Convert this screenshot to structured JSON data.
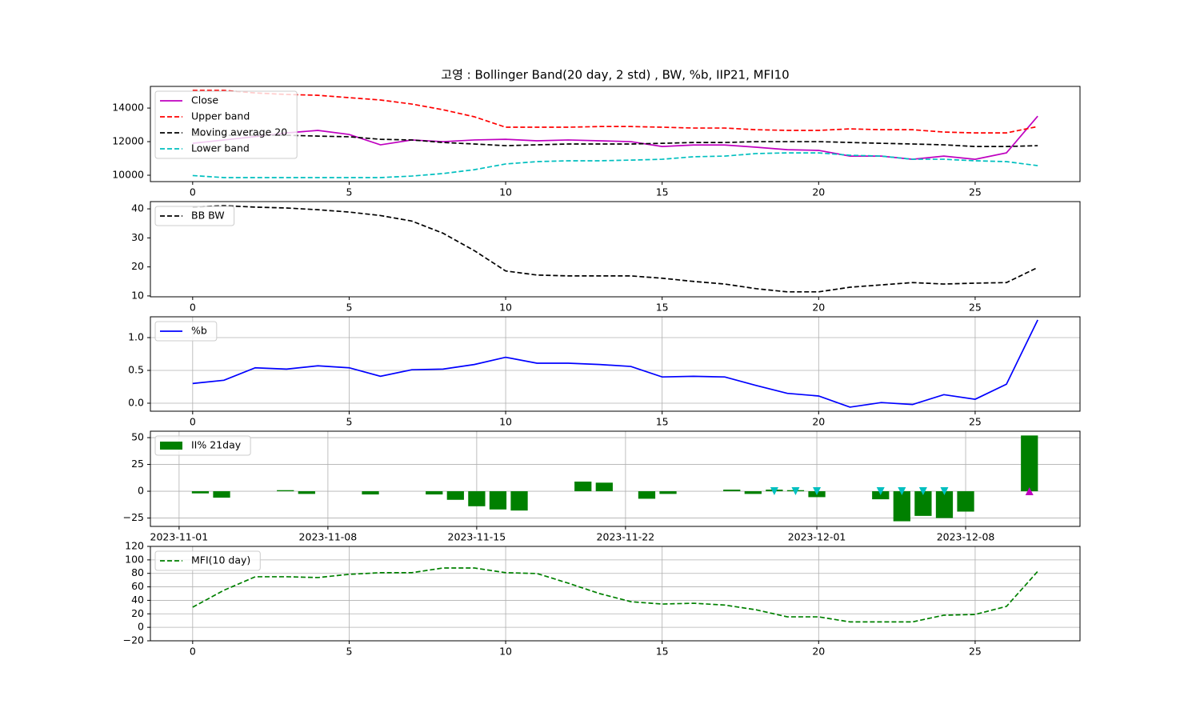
{
  "chart_data": [
    {
      "type": "line",
      "title": "고영 : Bollinger Band(20 day, 2 std) , BW, %b, IIP21, MFI10",
      "x": [
        0,
        1,
        2,
        3,
        4,
        5,
        6,
        7,
        8,
        9,
        10,
        11,
        12,
        13,
        14,
        15,
        16,
        17,
        18,
        19,
        20,
        21,
        22,
        23,
        24,
        25,
        26,
        27
      ],
      "xlim": [
        -1.35,
        28.35
      ],
      "xticks": [
        0,
        5,
        10,
        15,
        20,
        25
      ],
      "ylim": [
        9620,
        15290
      ],
      "yticks": [
        10000,
        12000,
        14000
      ],
      "grid": false,
      "legend": "upper left",
      "series": [
        {
          "name": "Close",
          "color": "#bf00bf",
          "style": "solid",
          "values": [
            11900,
            12100,
            12300,
            12520,
            12670,
            12430,
            11810,
            12100,
            12000,
            12100,
            12140,
            12050,
            12100,
            12050,
            12000,
            11710,
            11800,
            11800,
            11670,
            11520,
            11480,
            11140,
            11140,
            10950,
            11140,
            10950,
            11330,
            13520
          ]
        },
        {
          "name": "Upper band",
          "color": "#ff0000",
          "style": "dashed",
          "values": [
            15050,
            15050,
            14900,
            14810,
            14760,
            14620,
            14480,
            14240,
            13900,
            13480,
            12860,
            12860,
            12860,
            12900,
            12900,
            12860,
            12810,
            12810,
            12710,
            12670,
            12670,
            12760,
            12710,
            12710,
            12570,
            12520,
            12520,
            12900
          ]
        },
        {
          "name": "Moving average 20",
          "color": "#000000",
          "style": "dashed",
          "values": [
            12380,
            12380,
            12380,
            12380,
            12330,
            12290,
            12140,
            12100,
            11950,
            11860,
            11760,
            11810,
            11860,
            11860,
            11860,
            11900,
            11950,
            11950,
            12000,
            12000,
            12000,
            11950,
            11900,
            11860,
            11810,
            11710,
            11710,
            11760
          ]
        },
        {
          "name": "Lower band",
          "color": "#00bfbf",
          "style": "dashed",
          "values": [
            9980,
            9860,
            9860,
            9860,
            9860,
            9860,
            9860,
            9950,
            10100,
            10330,
            10670,
            10810,
            10860,
            10860,
            10900,
            10950,
            11100,
            11140,
            11290,
            11330,
            11330,
            11190,
            11140,
            10950,
            10950,
            10860,
            10810,
            10570
          ]
        }
      ]
    },
    {
      "type": "line",
      "x": [
        0,
        1,
        2,
        3,
        4,
        5,
        6,
        7,
        8,
        9,
        10,
        11,
        12,
        13,
        14,
        15,
        16,
        17,
        18,
        19,
        20,
        21,
        22,
        23,
        24,
        25,
        26,
        27
      ],
      "xlim": [
        -1.35,
        28.35
      ],
      "xticks": [
        0,
        5,
        10,
        15,
        20,
        25
      ],
      "ylim": [
        9.7,
        42.5
      ],
      "yticks": [
        10,
        20,
        30,
        40
      ],
      "grid": false,
      "legend": "upper left",
      "series": [
        {
          "name": "BB BW",
          "color": "#000000",
          "style": "dashed",
          "values": [
            40.6,
            41.1,
            40.6,
            40.3,
            39.7,
            38.9,
            37.7,
            35.8,
            31.6,
            25.6,
            18.6,
            17.2,
            16.9,
            16.9,
            16.9,
            16.1,
            15.0,
            14.1,
            12.5,
            11.4,
            11.4,
            13.0,
            13.8,
            14.6,
            14.1,
            14.4,
            14.6,
            19.8
          ]
        }
      ]
    },
    {
      "type": "line",
      "x": [
        0,
        1,
        2,
        3,
        4,
        5,
        6,
        7,
        8,
        9,
        10,
        11,
        12,
        13,
        14,
        15,
        16,
        17,
        18,
        19,
        20,
        21,
        22,
        23,
        24,
        25,
        26,
        27
      ],
      "xlim": [
        -1.35,
        28.35
      ],
      "xticks": [
        0,
        5,
        10,
        15,
        20,
        25
      ],
      "ylim": [
        -0.122,
        1.317
      ],
      "yticks": [
        {
          "value": 0,
          "label": "0.0"
        },
        {
          "value": 0.5,
          "label": "0.5"
        },
        {
          "value": 1,
          "label": "1.0"
        }
      ],
      "grid": true,
      "legend": "upper left",
      "series": [
        {
          "name": "%b",
          "color": "#0000ff",
          "style": "solid",
          "values": [
            0.3,
            0.35,
            0.54,
            0.52,
            0.57,
            0.54,
            0.41,
            0.51,
            0.52,
            0.59,
            0.7,
            0.61,
            0.61,
            0.59,
            0.56,
            0.4,
            0.41,
            0.4,
            0.27,
            0.15,
            0.11,
            -0.06,
            0.01,
            -0.02,
            0.13,
            0.06,
            0.29,
            1.27
          ]
        }
      ]
    },
    {
      "type": "bar",
      "x": [
        "2023-11-02",
        "2023-11-03",
        "2023-11-06",
        "2023-11-07",
        "2023-11-08",
        "2023-11-09",
        "2023-11-10",
        "2023-11-13",
        "2023-11-14",
        "2023-11-15",
        "2023-11-16",
        "2023-11-17",
        "2023-11-20",
        "2023-11-21",
        "2023-11-22",
        "2023-11-23",
        "2023-11-24",
        "2023-11-27",
        "2023-11-28",
        "2023-11-29",
        "2023-11-30",
        "2023-12-01",
        "2023-12-04",
        "2023-12-05",
        "2023-12-06",
        "2023-12-07",
        "2023-12-08",
        "2023-12-11"
      ],
      "xlim": [
        "2023-10-30T15:36:00",
        "2023-12-13T09:07:00"
      ],
      "xticks": [
        "2023-11-01",
        "2023-11-08",
        "2023-11-15",
        "2023-11-22",
        "2023-12-01",
        "2023-12-08"
      ],
      "ylim": [
        -32.8,
        56
      ],
      "yticks": [
        {
          "value": -25,
          "label": "−25"
        },
        0,
        25,
        50
      ],
      "grid": true,
      "legend": "upper left",
      "series": [
        {
          "name": "II% 21day",
          "color": "#008000",
          "values": [
            -2,
            -6,
            1,
            -2.5,
            0,
            0,
            -3,
            -3,
            -8,
            -14,
            -17,
            -18,
            9,
            8,
            0,
            -7,
            -2.5,
            1.5,
            -2.5,
            1.5,
            1,
            -5.5,
            -7.5,
            -28,
            -23,
            -25,
            -19,
            52
          ]
        }
      ],
      "markers": [
        {
          "color": "#00bfbf",
          "shape": "down",
          "x": [
            "2023-11-29",
            "2023-11-30",
            "2023-12-01",
            "2023-12-04",
            "2023-12-05",
            "2023-12-06",
            "2023-12-07"
          ],
          "values": [
            0,
            0,
            0,
            0,
            0,
            0,
            0
          ]
        },
        {
          "color": "#bf00bf",
          "shape": "up",
          "x": [
            "2023-12-11"
          ],
          "values": [
            0
          ]
        }
      ]
    },
    {
      "type": "line",
      "x": [
        0,
        1,
        2,
        3,
        4,
        5,
        6,
        7,
        8,
        9,
        10,
        11,
        12,
        13,
        14,
        15,
        16,
        17,
        18,
        19,
        20,
        21,
        22,
        23,
        24,
        25,
        26,
        27
      ],
      "xlim": [
        -1.35,
        28.35
      ],
      "xticks": [
        0,
        5,
        10,
        15,
        20,
        25
      ],
      "ylim": [
        -20,
        120
      ],
      "yticks": [
        {
          "value": -20,
          "label": "−20"
        },
        0,
        20,
        40,
        60,
        80,
        100,
        120
      ],
      "grid": true,
      "legend": "upper left",
      "series": [
        {
          "name": "MFI(10 day)",
          "color": "#008000",
          "style": "dashed",
          "values": [
            29.8,
            55,
            75,
            75,
            73.8,
            78.6,
            81,
            81,
            88,
            88,
            81,
            79.8,
            65.5,
            50,
            38,
            34.5,
            35.7,
            33,
            26,
            15.5,
            15.5,
            8,
            8,
            8,
            18,
            19,
            31,
            83
          ]
        }
      ]
    }
  ]
}
